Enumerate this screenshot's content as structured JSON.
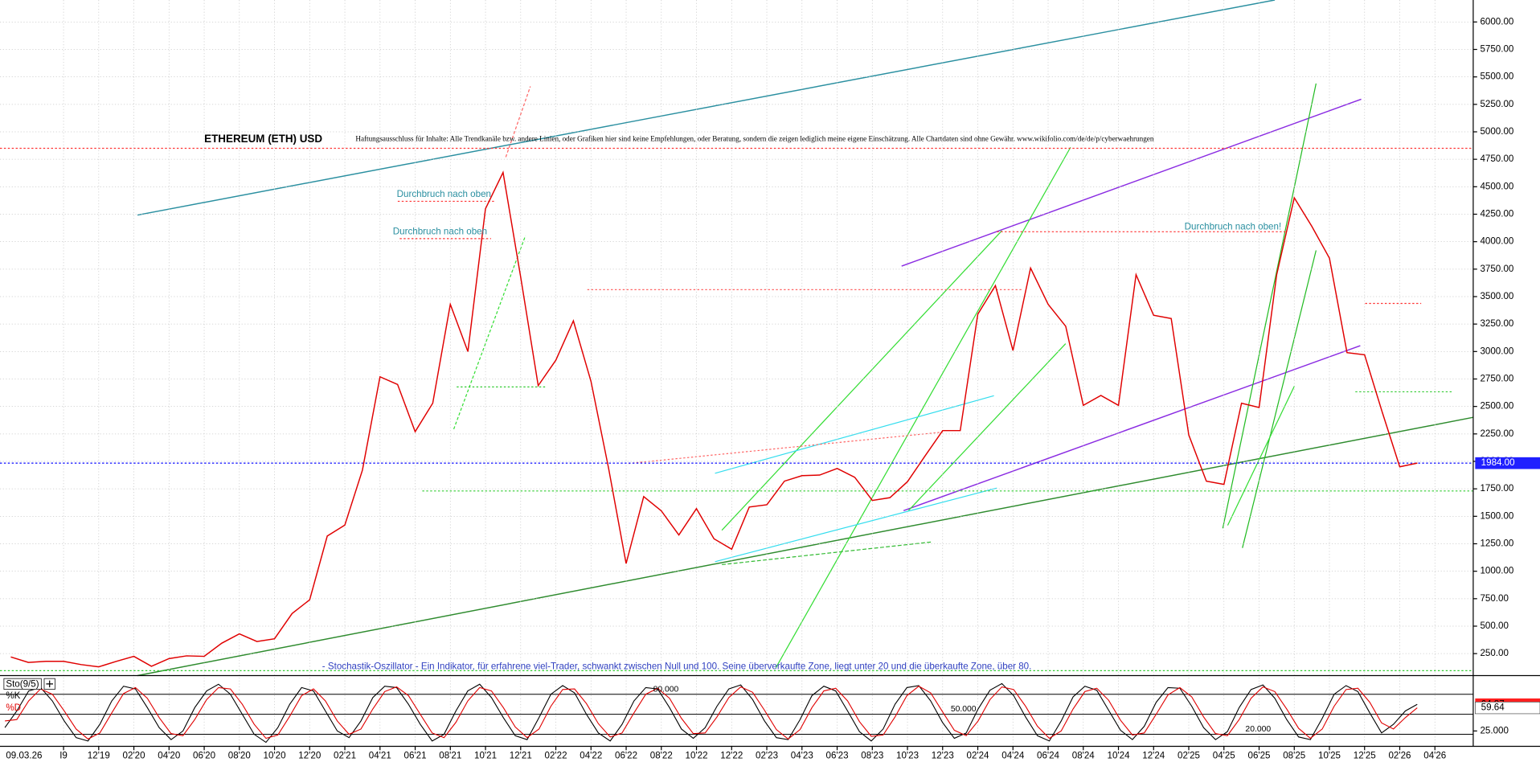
{
  "chart_data": [
    {
      "type": "line",
      "title": "ETHEREUM (ETH) USD",
      "disclaimer": "Haftungsausschluss für Inhalte: Alle Trendkanäle bzw. andere Linien, oder Grafiken hier sind keine Empfehlungen, oder Beratung, sondern die zeigen lediglich meine eigene Einschätzung. Alle Chartdaten sind ohne Gewähr. www.wikifolio.com/de/de/p/cyberwaehrungen",
      "annotations": [
        "Durchbruch nach oben",
        "Durchbruch nach oben",
        "Durchbruch nach oben!",
        "- Stochastik-Oszillator - Ein Indikator, für erfahrene viel-Trader, schwankt zwischen Null und 100. Seine überverkaufte Zone, liegt unter 20 und die überkaufte Zone, über 80."
      ],
      "date_label": "09.03.26",
      "categories": [
        null,
        null,
        null,
        "I9",
        null,
        "12'19",
        null,
        "02'20",
        null,
        "04'20",
        null,
        "06'20",
        null,
        "08'20",
        null,
        "10'20",
        null,
        "12'20",
        null,
        "02'21",
        null,
        "04'21",
        null,
        "06'21",
        null,
        "08'21",
        null,
        "10'21",
        null,
        "12'21",
        null,
        "02'22",
        null,
        "04'22",
        null,
        "06'22",
        null,
        "08'22",
        null,
        "10'22",
        null,
        "12'22",
        null,
        "02'23",
        null,
        "04'23",
        null,
        "06'23",
        null,
        "08'23",
        null,
        "10'23",
        null,
        "12'23",
        null,
        "02'24",
        null,
        "04'24",
        null,
        "06'24",
        null,
        "08'24",
        null,
        "10'24",
        null,
        "12'24",
        null,
        "02'25",
        null,
        "04'25",
        null,
        "06'25",
        null,
        "08'25",
        null,
        "10'25",
        null,
        "12'25",
        null,
        "02'26",
        null,
        "04'26"
      ],
      "values": [
        220,
        170,
        180,
        180,
        150,
        130,
        180,
        225,
        135,
        205,
        230,
        225,
        345,
        430,
        360,
        385,
        615,
        740,
        1320,
        1420,
        1920,
        2770,
        2700,
        2270,
        2530,
        3430,
        3000,
        4300,
        4630,
        3680,
        2690,
        2920,
        3280,
        2730,
        1940,
        1070,
        1680,
        1550,
        1330,
        1570,
        1295,
        1200,
        1585,
        1605,
        1820,
        1870,
        1875,
        1935,
        1855,
        1645,
        1670,
        1815,
        2050,
        2280,
        2280,
        3340,
        3600,
        3010,
        3760,
        3430,
        3230,
        2510,
        2600,
        2510,
        3700,
        3330,
        3300,
        2240,
        1820,
        1790,
        2530,
        2490,
        3700,
        4400,
        4140,
        3850,
        2990,
        2970,
        2450,
        1950,
        1984,
        null
      ],
      "color": "#e00000",
      "ylim": [
        50,
        6200
      ],
      "yticks": [
        {
          "value": 250,
          "label": "250.00"
        },
        {
          "value": 500,
          "label": "500.00"
        },
        {
          "value": 750,
          "label": "750.00"
        },
        {
          "value": 1000,
          "label": "1000.00"
        },
        {
          "value": 1250,
          "label": "1250.00"
        },
        {
          "value": 1500,
          "label": "1500.00"
        },
        {
          "value": 1750,
          "label": "1750.00"
        },
        {
          "value": 2000,
          "label": "2000.00"
        },
        {
          "value": 2250,
          "label": "2250.00"
        },
        {
          "value": 2500,
          "label": "2500.00"
        },
        {
          "value": 2750,
          "label": "2750.00"
        },
        {
          "value": 3000,
          "label": "3000.00"
        },
        {
          "value": 3250,
          "label": "3250.00"
        },
        {
          "value": 3500,
          "label": "3500.00"
        },
        {
          "value": 3750,
          "label": "3750.00"
        },
        {
          "value": 4000,
          "label": "4000.00"
        },
        {
          "value": 4250,
          "label": "4250.00"
        },
        {
          "value": 4500,
          "label": "4500.00"
        },
        {
          "value": 4750,
          "label": "4750.00"
        },
        {
          "value": 5000,
          "label": "5000.00"
        },
        {
          "value": 5250,
          "label": "5250.00"
        },
        {
          "value": 5500,
          "label": "5500.00"
        },
        {
          "value": 5750,
          "label": "5750.00"
        },
        {
          "value": 6000,
          "label": "6000.00"
        }
      ],
      "grid": true,
      "price_marker": {
        "value": 1984,
        "label": "1984.00",
        "color": "#2020ff"
      }
    },
    {
      "type": "line",
      "title": "Sto(9/5)",
      "series": [
        {
          "name": "%K",
          "color": "#000000",
          "values": [
            30,
            55,
            85,
            90,
            70,
            40,
            15,
            10,
            35,
            70,
            92,
            88,
            60,
            30,
            12,
            25,
            60,
            85,
            95,
            80,
            50,
            20,
            8,
            30,
            65,
            90,
            85,
            55,
            25,
            15,
            40,
            75,
            92,
            90,
            65,
            35,
            10,
            20,
            55,
            85,
            95,
            75,
            45,
            18,
            12,
            45,
            80,
            93,
            82,
            50,
            22,
            10,
            35,
            70,
            90,
            88,
            60,
            28,
            14,
            30,
            62,
            88,
            94,
            72,
            40,
            15,
            12,
            42,
            78,
            92,
            85,
            55,
            24,
            10,
            28,
            65,
            90,
            93,
            70,
            38,
            14,
            22,
            58,
            86,
            96,
            78,
            46,
            18,
            10,
            40,
            76,
            92,
            86,
            56,
            26,
            12,
            32,
            68,
            90,
            89,
            62,
            30,
            12,
            24,
            60,
            87,
            94,
            74,
            42,
            16,
            12,
            44,
            80,
            93,
            84,
            52,
            22,
            35,
            55,
            64.87
          ]
        },
        {
          "name": "%D",
          "color": "#e00000",
          "values": [
            40,
            42,
            70,
            88,
            80,
            55,
            28,
            13,
            22,
            52,
            81,
            90,
            74,
            45,
            21,
            18,
            42,
            72,
            90,
            88,
            65,
            35,
            14,
            19,
            47,
            78,
            88,
            70,
            40,
            20,
            28,
            58,
            84,
            91,
            78,
            50,
            22,
            15,
            38,
            70,
            90,
            85,
            60,
            31,
            15,
            28,
            62,
            87,
            88,
            66,
            36,
            16,
            22,
            52,
            80,
            89,
            74,
            44,
            21,
            22,
            46,
            75,
            91,
            83,
            56,
            27,
            13,
            27,
            60,
            85,
            89,
            70,
            39,
            17,
            19,
            46,
            78,
            92,
            82,
            54,
            26,
            18,
            40,
            72,
            91,
            87,
            62,
            32,
            14,
            25,
            58,
            84,
            89,
            71,
            41,
            19,
            22,
            50,
            79,
            90,
            76,
            46,
            21,
            18,
            42,
            74,
            91,
            84,
            58,
            29,
            14,
            28,
            62,
            87,
            89,
            68,
            37,
            28,
            45,
            59.64
          ]
        }
      ],
      "ylim": [
        5,
        105
      ],
      "yticks": [
        {
          "value": 25,
          "label": "25.000"
        }
      ],
      "levels": [
        {
          "value": 80,
          "label": "80.000"
        },
        {
          "value": 50,
          "label": "50.000"
        },
        {
          "value": 20,
          "label": "20.000"
        }
      ]
    }
  ]
}
